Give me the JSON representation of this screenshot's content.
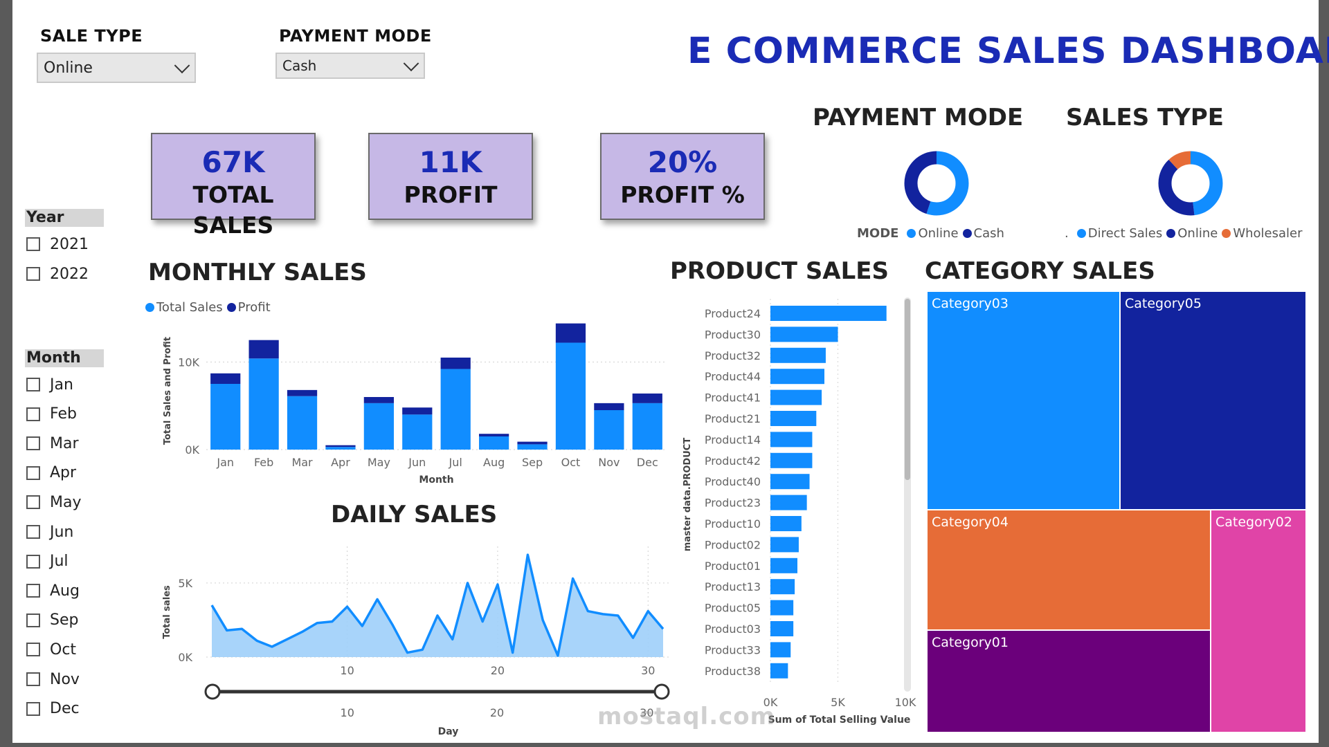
{
  "slicers": {
    "sale_type": {
      "label": "SALE TYPE",
      "value": "Online"
    },
    "payment_mode": {
      "label": "PAYMENT MODE",
      "value": "Cash"
    }
  },
  "dashboard_title": "E COMMERCE SALES DASHBOARD",
  "kpis": [
    {
      "value": "67K",
      "label": "TOTAL SALES"
    },
    {
      "value": "11K",
      "label": "PROFIT"
    },
    {
      "value": "20%",
      "label": "PROFIT %"
    }
  ],
  "filters": {
    "year": {
      "label": "Year",
      "items": [
        "2021",
        "2022"
      ]
    },
    "month": {
      "label": "Month",
      "items": [
        "Jan",
        "Feb",
        "Mar",
        "Apr",
        "May",
        "Jun",
        "Jul",
        "Aug",
        "Sep",
        "Oct",
        "Nov",
        "Dec"
      ]
    }
  },
  "colors": {
    "blue": "#118dff",
    "navy": "#12239e",
    "orange": "#e66c37",
    "pink": "#e044a7",
    "purple": "#6b007b",
    "lightblue": "#9fcff9"
  },
  "watermark": "mostaql.com",
  "chart_data": [
    {
      "id": "payment_mode",
      "type": "pie",
      "title": "PAYMENT MODE",
      "legend_title": "MODE",
      "labels": [
        "Online",
        "Cash"
      ],
      "values": [
        55,
        45
      ],
      "colors": [
        "#118dff",
        "#12239e"
      ]
    },
    {
      "id": "sales_type",
      "type": "pie",
      "title": "SALES TYPE",
      "legend_title": ".",
      "labels": [
        "Direct Sales",
        "Online",
        "Wholesaler"
      ],
      "values": [
        48,
        40,
        12
      ],
      "colors": [
        "#118dff",
        "#12239e",
        "#e66c37"
      ]
    },
    {
      "id": "monthly_sales",
      "type": "bar",
      "title": "MONTHLY SALES",
      "xlabel": "Month",
      "ylabel": "Total Sales and Profit",
      "ylim": [
        0,
        15000
      ],
      "yticks": [
        {
          "v": 0,
          "t": "0K"
        },
        {
          "v": 10000,
          "t": "10K"
        }
      ],
      "categories": [
        "Jan",
        "Feb",
        "Mar",
        "Apr",
        "May",
        "Jun",
        "Jul",
        "Aug",
        "Sep",
        "Oct",
        "Nov",
        "Dec"
      ],
      "series": [
        {
          "name": "Total Sales",
          "values": [
            7500,
            10400,
            6100,
            300,
            5300,
            4000,
            9200,
            1500,
            600,
            12200,
            4500,
            5300
          ]
        },
        {
          "name": "Profit",
          "values": [
            1200,
            2100,
            700,
            200,
            700,
            800,
            1300,
            300,
            300,
            2200,
            800,
            1100
          ]
        }
      ],
      "stacked": true,
      "legend": "top-left"
    },
    {
      "id": "daily_sales",
      "type": "area",
      "title": "DAILY SALES",
      "xlabel": "Day",
      "ylabel": "Total sales",
      "ylim": [
        0,
        7000
      ],
      "yticks": [
        {
          "v": 0,
          "t": "0K"
        },
        {
          "v": 5000,
          "t": "5K"
        }
      ],
      "xticks": [
        10,
        20,
        30
      ],
      "x": [
        1,
        2,
        3,
        4,
        5,
        6,
        7,
        8,
        9,
        10,
        11,
        12,
        13,
        14,
        15,
        16,
        17,
        18,
        19,
        20,
        21,
        22,
        23,
        24,
        25,
        26,
        27,
        28,
        29,
        30,
        31
      ],
      "values": [
        3500,
        1800,
        1900,
        1100,
        700,
        1200,
        1700,
        2300,
        2400,
        3400,
        2100,
        3900,
        2200,
        300,
        500,
        2800,
        1200,
        5000,
        2400,
        4900,
        300,
        6900,
        2500,
        100,
        5300,
        3100,
        2900,
        2800,
        1300,
        3100,
        1900
      ],
      "slider": {
        "min": 1,
        "max": 31,
        "ticks": [
          10,
          20,
          30
        ]
      }
    },
    {
      "id": "product_sales",
      "type": "bar",
      "orientation": "horizontal",
      "title": "PRODUCT SALES",
      "xlabel": "Sum of Total Selling Value",
      "ylabel": "master data.PRODUCT",
      "xlim": [
        0,
        10000
      ],
      "xticks": [
        {
          "v": 0,
          "t": "0K"
        },
        {
          "v": 5000,
          "t": "5K"
        },
        {
          "v": 10000,
          "t": "10K"
        }
      ],
      "categories": [
        "Product24",
        "Product30",
        "Product32",
        "Product44",
        "Product41",
        "Product21",
        "Product14",
        "Product42",
        "Product40",
        "Product23",
        "Product10",
        "Product02",
        "Product01",
        "Product13",
        "Product05",
        "Product03",
        "Product33",
        "Product38"
      ],
      "values": [
        8600,
        5000,
        4100,
        4000,
        3800,
        3400,
        3100,
        3100,
        2900,
        2700,
        2300,
        2100,
        2000,
        1800,
        1700,
        1700,
        1500,
        1300
      ]
    },
    {
      "id": "category_sales",
      "type": "treemap",
      "title": "CATEGORY SALES",
      "categories": [
        "Category03",
        "Category05",
        "Category04",
        "Category02",
        "Category01"
      ],
      "colors": [
        "#118dff",
        "#12239e",
        "#e66c37",
        "#e044a7",
        "#6b007b"
      ]
    }
  ]
}
